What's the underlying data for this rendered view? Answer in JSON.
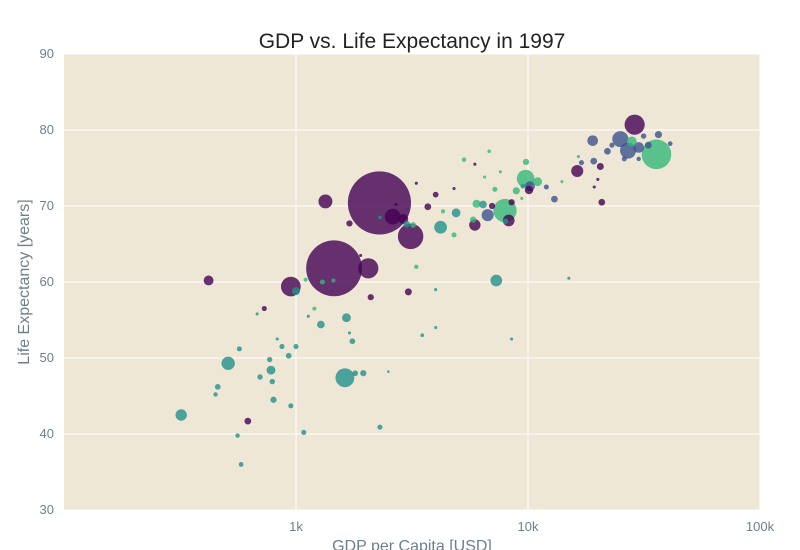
{
  "colors": {
    "background": "#ffffff",
    "plot_background": "#efe7d6",
    "gridline": "#ffffff",
    "continents": {
      "Africa": "#440154",
      "Americas": "#3b528b",
      "Asia": "#21918c",
      "Europe": "#5ec962",
      "Oceania": "#b6de2b"
    }
  },
  "chart_data": {
    "type": "scatter",
    "title": "GDP vs. Life Expectancy in 1997",
    "xlabel": "GDP per Capita [USD]",
    "ylabel": "Life Expectancy [years]",
    "xscale": "log",
    "xlim": [
      100,
      100000
    ],
    "ylim": [
      30,
      90
    ],
    "grid": true,
    "legend": "none",
    "x_ticks": [
      {
        "value": 1000,
        "label": "1k"
      },
      {
        "value": 10000,
        "label": "10k"
      },
      {
        "value": 100000,
        "label": "100k"
      }
    ],
    "y_ticks": [
      {
        "value": 30,
        "label": "30"
      },
      {
        "value": 40,
        "label": "40"
      },
      {
        "value": 50,
        "label": "50"
      },
      {
        "value": 60,
        "label": "60"
      },
      {
        "value": 70,
        "label": "70"
      },
      {
        "value": 80,
        "label": "80"
      },
      {
        "value": 90,
        "label": "90"
      }
    ],
    "points": [
      {
        "gdp": 2289,
        "life": 70.4,
        "pop": 1230,
        "color": "#440154"
      },
      {
        "gdp": 1459,
        "life": 61.8,
        "pop": 960,
        "color": "#440154"
      },
      {
        "gdp": 35767,
        "life": 76.8,
        "pop": 272,
        "color": "#35b779"
      },
      {
        "gdp": 3119,
        "life": 66.0,
        "pop": 200,
        "color": "#440154"
      },
      {
        "gdp": 7958,
        "life": 69.4,
        "pop": 168,
        "color": "#35b779"
      },
      {
        "gdp": 1339,
        "life": 70.6,
        "pop": 60,
        "color": "#440154"
      },
      {
        "gdp": 28817,
        "life": 80.7,
        "pop": 125,
        "color": "#440154"
      },
      {
        "gdp": 2050,
        "life": 61.8,
        "pop": 125,
        "color": "#440154"
      },
      {
        "gdp": 950,
        "life": 59.4,
        "pop": 120,
        "color": "#440154"
      },
      {
        "gdp": 1625,
        "life": 47.4,
        "pop": 110,
        "color": "#21918c"
      },
      {
        "gdp": 9767,
        "life": 73.6,
        "pop": 95,
        "color": "#35b779"
      },
      {
        "gdp": 2610,
        "life": 68.6,
        "pop": 76,
        "color": "#440154"
      },
      {
        "gdp": 27000,
        "life": 77.3,
        "pop": 80,
        "color": "#3b528b"
      },
      {
        "gdp": 25000,
        "life": 78.8,
        "pop": 80,
        "color": "#3b528b"
      },
      {
        "gdp": 510,
        "life": 49.3,
        "pop": 55,
        "color": "#21918c"
      },
      {
        "gdp": 4200,
        "life": 67.2,
        "pop": 50,
        "color": "#21918c"
      },
      {
        "gdp": 6700,
        "life": 68.8,
        "pop": 45,
        "color": "#3b528b"
      },
      {
        "gdp": 7300,
        "life": 60.2,
        "pop": 42,
        "color": "#21918c"
      },
      {
        "gdp": 320,
        "life": 42.5,
        "pop": 40,
        "color": "#21918c"
      },
      {
        "gdp": 16300,
        "life": 74.6,
        "pop": 45,
        "color": "#440154"
      },
      {
        "gdp": 8260,
        "life": 68.1,
        "pop": 42,
        "color": "#440154"
      },
      {
        "gdp": 5900,
        "life": 67.5,
        "pop": 40,
        "color": "#440154"
      },
      {
        "gdp": 2900,
        "life": 68.3,
        "pop": 30,
        "color": "#440154"
      },
      {
        "gdp": 10200,
        "life": 72.6,
        "pop": 30,
        "color": "#3b528b"
      },
      {
        "gdp": 420,
        "life": 60.2,
        "pop": 30,
        "color": "#440154"
      },
      {
        "gdp": 19000,
        "life": 78.6,
        "pop": 35,
        "color": "#3b528b"
      },
      {
        "gdp": 30000,
        "life": 77.7,
        "pop": 35,
        "color": "#3b528b"
      },
      {
        "gdp": 28000,
        "life": 78.5,
        "pop": 30,
        "color": "#35b779"
      },
      {
        "gdp": 1650,
        "life": 55.3,
        "pop": 24,
        "color": "#21918c"
      },
      {
        "gdp": 780,
        "life": 48.4,
        "pop": 24,
        "color": "#21918c"
      },
      {
        "gdp": 4900,
        "life": 69.1,
        "pop": 24,
        "color": "#21918c"
      },
      {
        "gdp": 11000,
        "life": 73.2,
        "pop": 24,
        "color": "#35b779"
      },
      {
        "gdp": 1000,
        "life": 58.8,
        "pop": 20,
        "color": "#21918c"
      },
      {
        "gdp": 1280,
        "life": 54.4,
        "pop": 18,
        "color": "#21918c"
      },
      {
        "gdp": 2100,
        "life": 58.0,
        "pop": 12,
        "color": "#440154"
      },
      {
        "gdp": 3050,
        "life": 58.7,
        "pop": 15,
        "color": "#440154"
      },
      {
        "gdp": 3700,
        "life": 69.9,
        "pop": 14,
        "color": "#440154"
      },
      {
        "gdp": 6000,
        "life": 70.3,
        "pop": 20,
        "color": "#35b779"
      },
      {
        "gdp": 8900,
        "life": 72.0,
        "pop": 16,
        "color": "#35b779"
      },
      {
        "gdp": 13000,
        "life": 70.9,
        "pop": 14,
        "color": "#3b528b"
      },
      {
        "gdp": 19200,
        "life": 75.9,
        "pop": 14,
        "color": "#3b528b"
      },
      {
        "gdp": 20500,
        "life": 75.2,
        "pop": 15,
        "color": "#440154"
      },
      {
        "gdp": 22000,
        "life": 77.2,
        "pop": 14,
        "color": "#3b528b"
      },
      {
        "gdp": 33000,
        "life": 78.0,
        "pop": 15,
        "color": "#3b528b"
      },
      {
        "gdp": 36500,
        "life": 79.4,
        "pop": 16,
        "color": "#3b528b"
      },
      {
        "gdp": 20800,
        "life": 70.5,
        "pop": 14,
        "color": "#440154"
      },
      {
        "gdp": 9800,
        "life": 75.8,
        "pop": 12,
        "color": "#35b779"
      },
      {
        "gdp": 10100,
        "life": 72.1,
        "pop": 22,
        "color": "#440154"
      },
      {
        "gdp": 8500,
        "life": 70.5,
        "pop": 12,
        "color": "#440154"
      },
      {
        "gdp": 7000,
        "life": 70.0,
        "pop": 12,
        "color": "#440154"
      },
      {
        "gdp": 6400,
        "life": 70.2,
        "pop": 18,
        "color": "#21918c"
      },
      {
        "gdp": 5800,
        "life": 68.2,
        "pop": 12,
        "color": "#35b779"
      },
      {
        "gdp": 3200,
        "life": 67.5,
        "pop": 10,
        "color": "#35b779"
      },
      {
        "gdp": 3000,
        "life": 67.6,
        "pop": 14,
        "color": "#21918c"
      },
      {
        "gdp": 1700,
        "life": 67.7,
        "pop": 12,
        "color": "#440154"
      },
      {
        "gdp": 1750,
        "life": 52.2,
        "pop": 10,
        "color": "#21918c"
      },
      {
        "gdp": 1800,
        "life": 48.0,
        "pop": 10,
        "color": "#21918c"
      },
      {
        "gdp": 1300,
        "life": 60.0,
        "pop": 8,
        "color": "#35b779"
      },
      {
        "gdp": 1000,
        "life": 51.5,
        "pop": 8,
        "color": "#21918c"
      },
      {
        "gdp": 930,
        "life": 50.3,
        "pop": 10,
        "color": "#21918c"
      },
      {
        "gdp": 870,
        "life": 51.5,
        "pop": 8,
        "color": "#21918c"
      },
      {
        "gdp": 790,
        "life": 46.9,
        "pop": 9,
        "color": "#21918c"
      },
      {
        "gdp": 770,
        "life": 49.8,
        "pop": 9,
        "color": "#21918c"
      },
      {
        "gdp": 800,
        "life": 44.5,
        "pop": 12,
        "color": "#21918c"
      },
      {
        "gdp": 700,
        "life": 47.5,
        "pop": 9,
        "color": "#21918c"
      },
      {
        "gdp": 570,
        "life": 51.2,
        "pop": 8,
        "color": "#21918c"
      },
      {
        "gdp": 460,
        "life": 46.2,
        "pop": 10,
        "color": "#21918c"
      },
      {
        "gdp": 450,
        "life": 45.2,
        "pop": 6,
        "color": "#21918c"
      },
      {
        "gdp": 620,
        "life": 41.7,
        "pop": 14,
        "color": "#440154"
      },
      {
        "gdp": 950,
        "life": 43.7,
        "pop": 8,
        "color": "#21918c"
      },
      {
        "gdp": 1080,
        "life": 40.2,
        "pop": 8,
        "color": "#21918c"
      },
      {
        "gdp": 560,
        "life": 39.8,
        "pop": 6,
        "color": "#21918c"
      },
      {
        "gdp": 580,
        "life": 36.0,
        "pop": 7,
        "color": "#21918c"
      },
      {
        "gdp": 2300,
        "life": 40.9,
        "pop": 8,
        "color": "#21918c"
      },
      {
        "gdp": 1950,
        "life": 48.0,
        "pop": 12,
        "color": "#21918c"
      },
      {
        "gdp": 730,
        "life": 56.5,
        "pop": 8,
        "color": "#440154"
      },
      {
        "gdp": 1200,
        "life": 56.5,
        "pop": 5,
        "color": "#35b779"
      },
      {
        "gdp": 1450,
        "life": 60.2,
        "pop": 5,
        "color": "#35b779"
      },
      {
        "gdp": 1100,
        "life": 60.3,
        "pop": 5,
        "color": "#35b779"
      },
      {
        "gdp": 3300,
        "life": 62.0,
        "pop": 6,
        "color": "#35b779"
      },
      {
        "gdp": 4300,
        "life": 69.3,
        "pop": 5,
        "color": "#35b779"
      },
      {
        "gdp": 4800,
        "life": 66.2,
        "pop": 8,
        "color": "#35b779"
      },
      {
        "gdp": 5300,
        "life": 76.1,
        "pop": 6,
        "color": "#35b779"
      },
      {
        "gdp": 7200,
        "life": 72.2,
        "pop": 8,
        "color": "#35b779"
      },
      {
        "gdp": 6800,
        "life": 77.2,
        "pop": 4,
        "color": "#35b779"
      },
      {
        "gdp": 9500,
        "life": 72.6,
        "pop": 7,
        "color": "#21918c"
      },
      {
        "gdp": 12000,
        "life": 72.5,
        "pop": 8,
        "color": "#3b528b"
      },
      {
        "gdp": 17000,
        "life": 75.7,
        "pop": 8,
        "color": "#3b528b"
      },
      {
        "gdp": 23000,
        "life": 78.0,
        "pop": 8,
        "color": "#3b528b"
      },
      {
        "gdp": 26000,
        "life": 76.2,
        "pop": 8,
        "color": "#3b528b"
      },
      {
        "gdp": 31500,
        "life": 79.2,
        "pop": 9,
        "color": "#3b528b"
      },
      {
        "gdp": 41000,
        "life": 78.2,
        "pop": 7,
        "color": "#3b528b"
      },
      {
        "gdp": 30000,
        "life": 76.2,
        "pop": 6,
        "color": "#3b528b"
      },
      {
        "gdp": 4000,
        "life": 71.5,
        "pop": 10,
        "color": "#440154"
      },
      {
        "gdp": 8000,
        "life": 68.0,
        "pop": 10,
        "color": "#21918c"
      },
      {
        "gdp": 3500,
        "life": 53.0,
        "pop": 4,
        "color": "#21918c"
      },
      {
        "gdp": 4000,
        "life": 54.0,
        "pop": 3,
        "color": "#21918c"
      },
      {
        "gdp": 4000,
        "life": 59.0,
        "pop": 3,
        "color": "#21918c"
      },
      {
        "gdp": 8500,
        "life": 52.5,
        "pop": 3,
        "color": "#21918c"
      },
      {
        "gdp": 15000,
        "life": 60.5,
        "pop": 3,
        "color": "#21918c"
      },
      {
        "gdp": 1700,
        "life": 53.3,
        "pop": 3,
        "color": "#21918c"
      },
      {
        "gdp": 3300,
        "life": 73.0,
        "pop": 3,
        "color": "#440154"
      },
      {
        "gdp": 4800,
        "life": 72.3,
        "pop": 3,
        "color": "#440154"
      },
      {
        "gdp": 5900,
        "life": 75.5,
        "pop": 3,
        "color": "#440154"
      },
      {
        "gdp": 20000,
        "life": 73.5,
        "pop": 3,
        "color": "#440154"
      },
      {
        "gdp": 19300,
        "life": 72.5,
        "pop": 3,
        "color": "#440154"
      },
      {
        "gdp": 2300,
        "life": 68.5,
        "pop": 4,
        "color": "#21918c"
      },
      {
        "gdp": 2500,
        "life": 48.2,
        "pop": 2,
        "color": "#21918c"
      },
      {
        "gdp": 1130,
        "life": 55.5,
        "pop": 3,
        "color": "#21918c"
      },
      {
        "gdp": 680,
        "life": 55.8,
        "pop": 3,
        "color": "#21918c"
      },
      {
        "gdp": 830,
        "life": 52.5,
        "pop": 3,
        "color": "#21918c"
      },
      {
        "gdp": 6500,
        "life": 73.8,
        "pop": 3,
        "color": "#35b779"
      },
      {
        "gdp": 7600,
        "life": 74.5,
        "pop": 3,
        "color": "#35b779"
      },
      {
        "gdp": 16500,
        "life": 76.5,
        "pop": 3,
        "color": "#35b779"
      },
      {
        "gdp": 14000,
        "life": 73.2,
        "pop": 3,
        "color": "#35b779"
      },
      {
        "gdp": 9400,
        "life": 71.0,
        "pop": 3,
        "color": "#35b779"
      },
      {
        "gdp": 1900,
        "life": 63.5,
        "pop": 3,
        "color": "#440154"
      },
      {
        "gdp": 2700,
        "life": 70.2,
        "pop": 3,
        "color": "#440154"
      }
    ]
  }
}
